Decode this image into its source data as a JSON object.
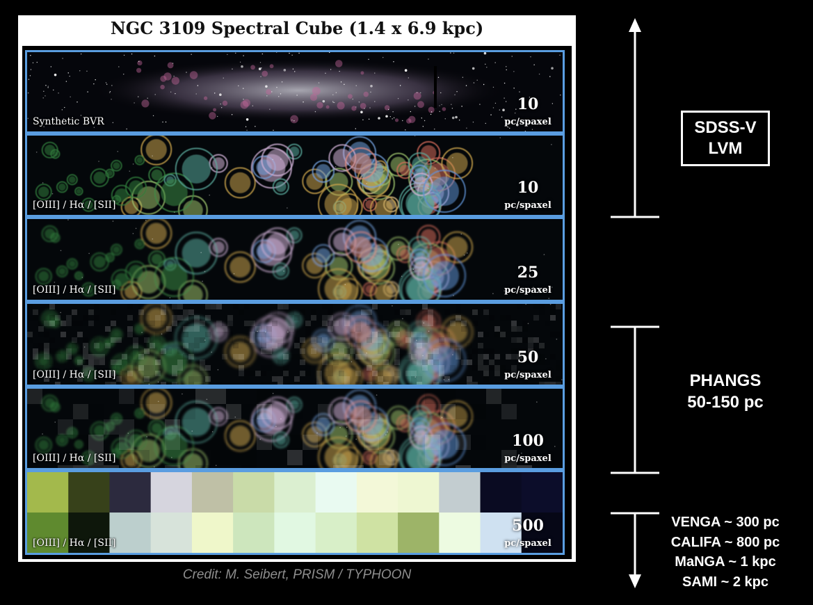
{
  "figure": {
    "title": "NGC 3109 Spectral Cube (1.4 x 6.9 kpc)",
    "credit": "Credit: M. Seibert, PRISM / TYPHOON"
  },
  "strips": [
    {
      "label": "Synthetic BVR",
      "resolution": "10",
      "unit": "pc/spaxel",
      "kind": "broadband"
    },
    {
      "label": "[OIII] / Hα / [SII]",
      "resolution": "10",
      "unit": "pc/spaxel",
      "kind": "narrowband"
    },
    {
      "label": "[OIII] / Hα / [SII]",
      "resolution": "25",
      "unit": "pc/spaxel",
      "kind": "narrowband"
    },
    {
      "label": "[OIII] / Hα / [SII]",
      "resolution": "50",
      "unit": "pc/spaxel",
      "kind": "narrowband"
    },
    {
      "label": "[OIII] / Hα / [SII]",
      "resolution": "100",
      "unit": "pc/spaxel",
      "kind": "narrowband"
    },
    {
      "label": "[OIII] / Hα / [SII]",
      "resolution": "500",
      "unit": "pc/spaxel",
      "kind": "pixel-grid"
    }
  ],
  "pixel_grid_colors": [
    [
      "#a3b94c",
      "#37411a",
      "#2c2a3e",
      "#d6d5de",
      "#bfc0a6",
      "#c9dba8",
      "#dbefd0",
      "#e9faf1",
      "#f3f8d8",
      "#eef7d2",
      "#c3cdd0",
      "#0a0b22",
      "#0c0d2a"
    ],
    [
      "#5f8a2f",
      "#0e170b",
      "#bccfcd",
      "#d7e3da",
      "#eff7ca",
      "#cde6bd",
      "#e1f8e2",
      "#d8efc8",
      "#cfe2a3",
      "#9db468",
      "#edfbe1",
      "#cfe1f1",
      "#060716"
    ]
  ],
  "surveys": {
    "sdss": {
      "line1": "SDSS-V",
      "line2": "LVM"
    },
    "phangs": {
      "line1": "PHANGS",
      "line2": "50-150 pc"
    },
    "others": [
      "VENGA ~ 300 pc",
      "CALIFA ~ 800 pc",
      "MaNGA ~ 1 kpc",
      "SAMI ~ 2 kpc"
    ]
  },
  "colors": {
    "strip_border": "#5a9de0",
    "background": "#000000",
    "panel": "#ffffff"
  }
}
